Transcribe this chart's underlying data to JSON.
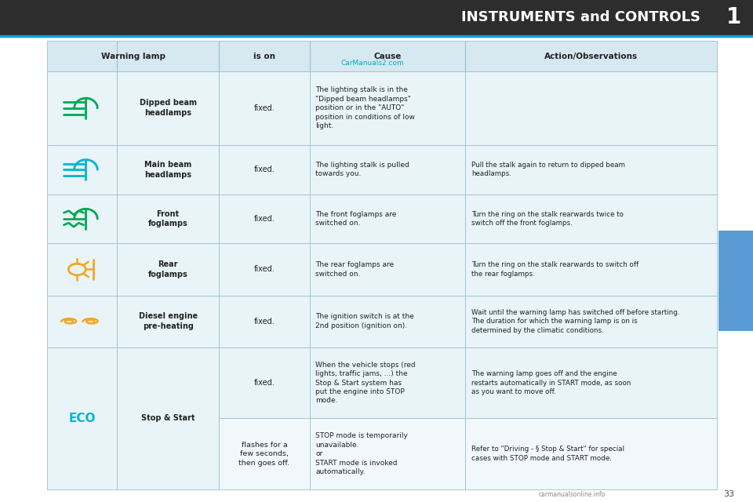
{
  "title": "INSTRUMENTS and CONTROLS",
  "page_num": "1",
  "header_bg": "#2d2d2d",
  "header_text_color": "#ffffff",
  "table_header_bg": "#d6e9f0",
  "table_row_bg1": "#e8f4f8",
  "table_row_bg2": "#f0f8fc",
  "green_color": "#00a850",
  "orange_color": "#f5a623",
  "cyan_color": "#00b5cc",
  "watermark_color": "#00aacc",
  "sidebar_color": "#5b9bd5",
  "col_headers": [
    "Warning lamp",
    "is on",
    "Cause",
    "Action/Observations"
  ],
  "rows": [
    {
      "icon_type": "dipped_beam",
      "icon_color": "#00a850",
      "label": "Dipped beam\nheadlamps",
      "is_on": "fixed.",
      "cause": "The lighting stalk is in the\n\"Dipped beam headlamps\"\nposition or in the \"AUTO\"\nposition in conditions of low\nlight.",
      "action": ""
    },
    {
      "icon_type": "main_beam",
      "icon_color": "#00b5cc",
      "label": "Main beam\nheadlamps",
      "is_on": "fixed.",
      "cause": "The lighting stalk is pulled\ntowards you.",
      "action": "Pull the stalk again to return to dipped beam\nheadlamps."
    },
    {
      "icon_type": "front_fog",
      "icon_color": "#00a850",
      "label": "Front\nfoglamps",
      "is_on": "fixed.",
      "cause": "The front foglamps are\nswitched on.",
      "action": "Turn the ring on the stalk rearwards twice to\nswitch off the front foglamps."
    },
    {
      "icon_type": "rear_fog",
      "icon_color": "#f5a623",
      "label": "Rear\nfoglamps",
      "is_on": "fixed.",
      "cause": "The rear foglamps are\nswitched on.",
      "action": "Turn the ring on the stalk rearwards to switch off\nthe rear foglamps."
    },
    {
      "icon_type": "diesel",
      "icon_color": "#f5a623",
      "label": "Diesel engine\npre-heating",
      "is_on": "fixed.",
      "cause": "The ignition switch is at the\n2nd position (ignition on).",
      "action": "Wait until the warning lamp has switched off before starting.\nThe duration for which the warning lamp is on is\ndetermined by the climatic conditions."
    },
    {
      "icon_type": "eco_fixed",
      "icon_color": "#00b5cc",
      "label": "Stop & Start",
      "is_on": "fixed.",
      "cause": "When the vehicle stops (red\nlights, traffic jams, ...) the\nStop & Start system has\nput the engine into STOP\nmode.",
      "action": "The warning lamp goes off and the engine\nrestarts automatically in START mode, as soon\nas you want to move off."
    },
    {
      "icon_type": "eco_flash",
      "icon_color": "#00b5cc",
      "label": "",
      "is_on": "flashes for a\nfew seconds,\nthen goes off.",
      "cause": "STOP mode is temporarily\nunavailable.\nor\nSTART mode is invoked\nautomatically.",
      "action": "Refer to \"Driving - § Stop & Start\" for special\ncases with STOP mode and START mode."
    }
  ]
}
